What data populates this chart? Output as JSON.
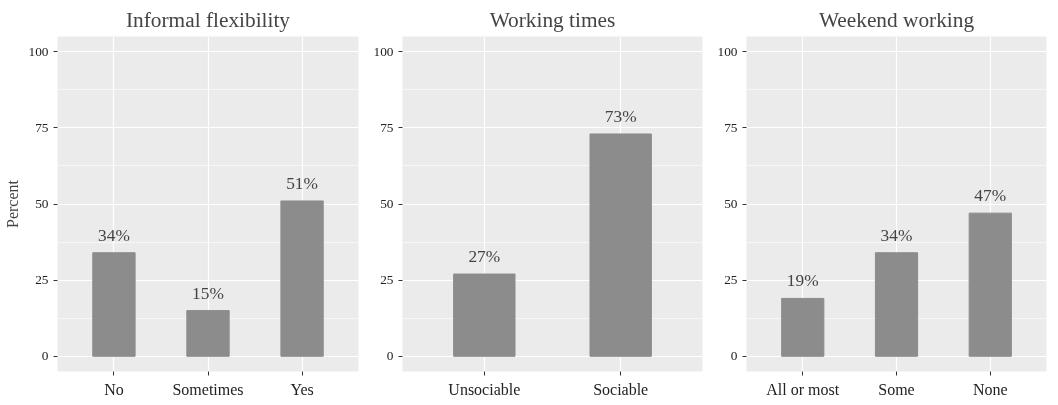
{
  "chart_data": [
    {
      "type": "bar",
      "title": "Informal flexibility",
      "ylabel": "Percent",
      "categories": [
        "No",
        "Sometimes",
        "Yes"
      ],
      "values": [
        34,
        15,
        51
      ],
      "value_labels": [
        "34%",
        "15%",
        "51%"
      ],
      "color": "#8c8c8c",
      "ylim": [
        -5,
        105
      ],
      "yticks": [
        0,
        25,
        50,
        75,
        100
      ],
      "grid": true
    },
    {
      "type": "bar",
      "title": "Working times",
      "categories": [
        "Unsociable",
        "Sociable"
      ],
      "values": [
        27,
        73
      ],
      "value_labels": [
        "27%",
        "73%"
      ],
      "color": "#8c8c8c",
      "ylim": [
        -5,
        105
      ],
      "yticks": [
        0,
        25,
        50,
        75,
        100
      ],
      "grid": true
    },
    {
      "type": "bar",
      "title": "Weekend working",
      "categories": [
        "All or most",
        "Some",
        "None"
      ],
      "values": [
        19,
        34,
        47
      ],
      "value_labels": [
        "19%",
        "34%",
        "47%"
      ],
      "color": "#8c8c8c",
      "ylim": [
        -5,
        105
      ],
      "yticks": [
        0,
        25,
        50,
        75,
        100
      ],
      "grid": true
    }
  ]
}
